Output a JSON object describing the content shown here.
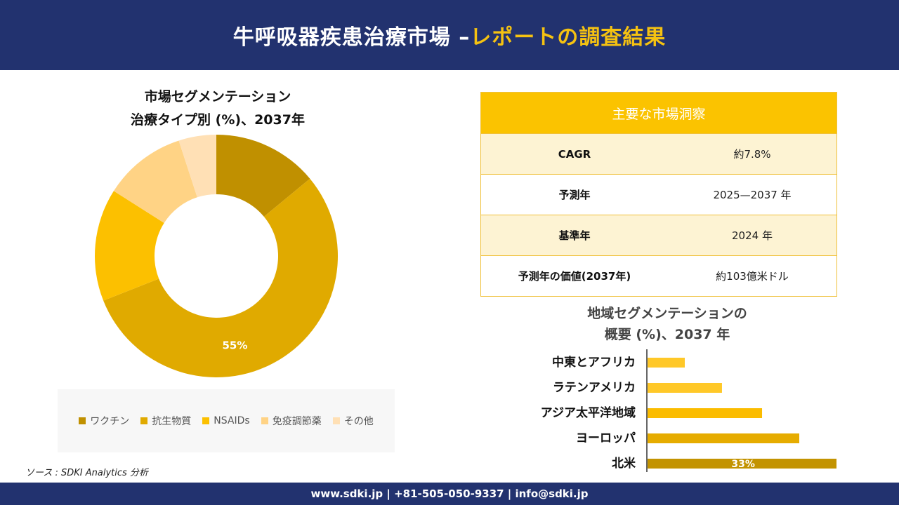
{
  "header": {
    "title_main": "牛呼吸器疾患治療市場 –",
    "title_highlight": "レポートの調査結果"
  },
  "donut": {
    "title_line1": "市場セグメンテーション",
    "title_line2": "治療タイプ別 (%)、2037年"
  },
  "insights": {
    "heading": "主要な市場洞察",
    "rows": [
      {
        "key": "CAGR",
        "value": "約7.8%"
      },
      {
        "key": "予測年",
        "value": "2025—2037 年"
      },
      {
        "key": "基準年",
        "value": "2024 年"
      },
      {
        "key": "予測年の価値(2037年)",
        "value": "約103億米ドル"
      }
    ]
  },
  "bars": {
    "title_line1": "地域セグメンテーションの",
    "title_line2": "概要 (%)、2037 年"
  },
  "source": "ソース : SDKI Analytics 分析",
  "footer": {
    "contact": "www.sdki.jp | +81-505-050-9337 | info@sdki.jp"
  },
  "chart_data": [
    {
      "type": "pie",
      "donut": true,
      "title": "市場セグメンテーション 治療タイプ別 (%)、2037年",
      "categories": [
        "ワクチン",
        "抗生物質",
        "NSAIDs",
        "免疫調節薬",
        "その他"
      ],
      "values": [
        14,
        55,
        15,
        11,
        5
      ],
      "data_labels": [
        "",
        "55%",
        "",
        "",
        ""
      ],
      "colors": [
        "#c09000",
        "#e0aa00",
        "#fcc000",
        "#ffd385",
        "#ffe0b5"
      ],
      "legend": "bottom"
    },
    {
      "type": "bar",
      "orientation": "horizontal",
      "title": "地域セグメンテーションの 概要 (%)、2037 年",
      "categories": [
        "中東とアフリカ",
        "ラテンアメリカ",
        "アジア太平洋地域",
        "ヨーロッパ",
        "北米"
      ],
      "values": [
        6.5,
        13,
        20,
        26.5,
        33
      ],
      "data_labels": [
        "",
        "",
        "",
        "",
        "33%"
      ],
      "colors": [
        "#ffc828",
        "#ffc828",
        "#fbbc00",
        "#e6ac00",
        "#c39300"
      ],
      "xlim": [
        0,
        33
      ]
    }
  ]
}
